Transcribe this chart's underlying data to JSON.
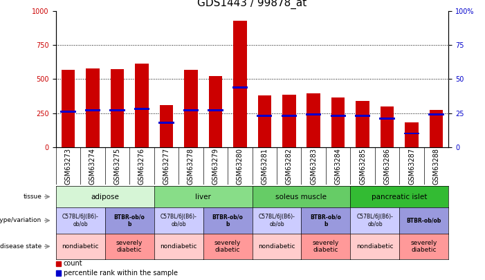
{
  "title": "GDS1443 / 99878_at",
  "samples": [
    "GSM63273",
    "GSM63274",
    "GSM63275",
    "GSM63276",
    "GSM63277",
    "GSM63278",
    "GSM63279",
    "GSM63280",
    "GSM63281",
    "GSM63282",
    "GSM63283",
    "GSM63284",
    "GSM63285",
    "GSM63286",
    "GSM63287",
    "GSM63288"
  ],
  "counts": [
    570,
    580,
    575,
    615,
    310,
    570,
    520,
    930,
    380,
    385,
    395,
    365,
    340,
    300,
    180,
    275
  ],
  "percentile_ranks": [
    26,
    27,
    27,
    28,
    18,
    27,
    27,
    44,
    23,
    23,
    24,
    23,
    23,
    21,
    10,
    24
  ],
  "bar_color": "#cc0000",
  "pct_color": "#0000cc",
  "ylim_left": [
    0,
    1000
  ],
  "ylim_right": [
    0,
    100
  ],
  "yticks_left": [
    0,
    250,
    500,
    750,
    1000
  ],
  "yticks_right": [
    0,
    25,
    50,
    75,
    100
  ],
  "tissue_groups": [
    {
      "label": "adipose",
      "start": 0,
      "end": 4,
      "color": "#d6f5d6"
    },
    {
      "label": "liver",
      "start": 4,
      "end": 8,
      "color": "#88dd88"
    },
    {
      "label": "soleus muscle",
      "start": 8,
      "end": 12,
      "color": "#66cc66"
    },
    {
      "label": "pancreatic islet",
      "start": 12,
      "end": 16,
      "color": "#33bb33"
    }
  ],
  "genotype_groups": [
    {
      "label": "C57BL/6J(B6)-\nob/ob",
      "start": 0,
      "end": 2,
      "color": "#ccccff",
      "bold": false
    },
    {
      "label": "BTBR-ob/o\nb",
      "start": 2,
      "end": 4,
      "color": "#9999dd",
      "bold": true
    },
    {
      "label": "C57BL/6J(B6)-\nob/ob",
      "start": 4,
      "end": 6,
      "color": "#ccccff",
      "bold": false
    },
    {
      "label": "BTBR-ob/o\nb",
      "start": 6,
      "end": 8,
      "color": "#9999dd",
      "bold": true
    },
    {
      "label": "C57BL/6J(B6)-\nob/ob",
      "start": 8,
      "end": 10,
      "color": "#ccccff",
      "bold": false
    },
    {
      "label": "BTBR-ob/o\nb",
      "start": 10,
      "end": 12,
      "color": "#9999dd",
      "bold": true
    },
    {
      "label": "C57BL/6J(B6)-\nob/ob",
      "start": 12,
      "end": 14,
      "color": "#ccccff",
      "bold": false
    },
    {
      "label": "BTBR-ob/ob",
      "start": 14,
      "end": 16,
      "color": "#9999dd",
      "bold": true
    }
  ],
  "disease_groups": [
    {
      "label": "nondiabetic",
      "start": 0,
      "end": 2,
      "color": "#ffcccc"
    },
    {
      "label": "severely\ndiabetic",
      "start": 2,
      "end": 4,
      "color": "#ff9999"
    },
    {
      "label": "nondiabetic",
      "start": 4,
      "end": 6,
      "color": "#ffcccc"
    },
    {
      "label": "severely\ndiabetic",
      "start": 6,
      "end": 8,
      "color": "#ff9999"
    },
    {
      "label": "nondiabetic",
      "start": 8,
      "end": 10,
      "color": "#ffcccc"
    },
    {
      "label": "severely\ndiabetic",
      "start": 10,
      "end": 12,
      "color": "#ff9999"
    },
    {
      "label": "nondiabetic",
      "start": 12,
      "end": 14,
      "color": "#ffcccc"
    },
    {
      "label": "severely\ndiabetic",
      "start": 14,
      "end": 16,
      "color": "#ff9999"
    }
  ],
  "legend_items": [
    {
      "label": "count",
      "color": "#cc0000"
    },
    {
      "label": "percentile rank within the sample",
      "color": "#0000cc"
    }
  ],
  "background_color": "#ffffff",
  "title_fontsize": 11,
  "tick_fontsize": 7
}
